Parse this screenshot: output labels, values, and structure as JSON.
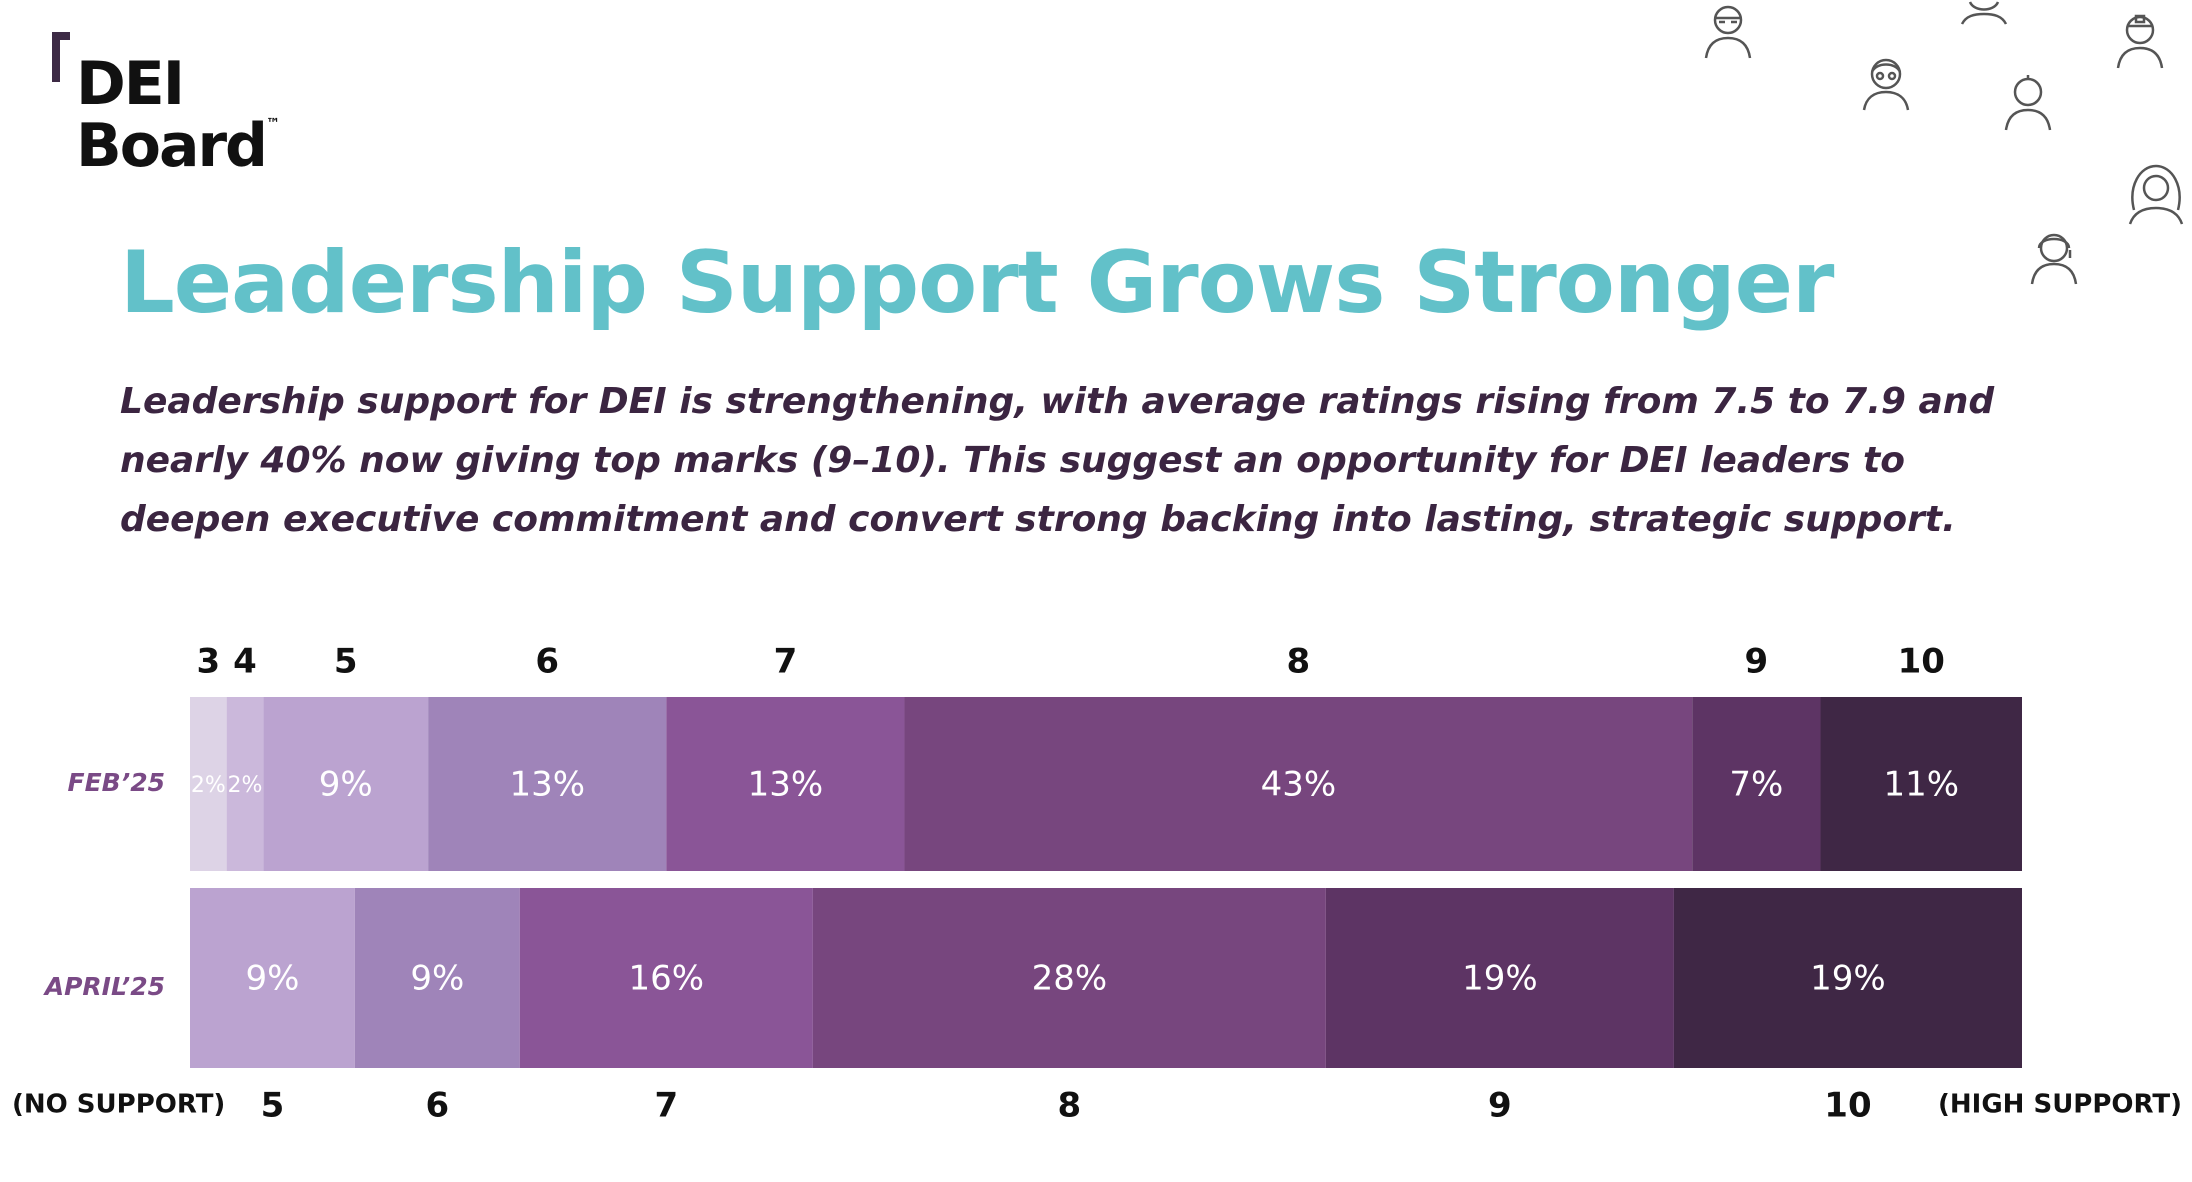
{
  "logo": {
    "line1": "DEI",
    "line2": "Board",
    "tm": "™"
  },
  "icons": [
    "person-icon",
    "person-icon",
    "person-icon",
    "person-icon",
    "person-icon",
    "person-icon",
    "person-icon"
  ],
  "header": {
    "title": "Leadership Support Grows Stronger",
    "subtitle": "Leadership support for DEI is strengthening, with average ratings rising from 7.5 to 7.9 and nearly 40% now giving top marks (9–10). This suggest an opportunity for DEI leaders to deepen executive commitment and convert strong backing into lasting, strategic support."
  },
  "chart_data": {
    "type": "bar",
    "orientation": "horizontal-stacked-100",
    "rows": [
      {
        "label": "FEB’25",
        "segments": [
          {
            "rating": "3",
            "value": 2,
            "label": "2%",
            "color": "#ddd3e6"
          },
          {
            "rating": "4",
            "value": 2,
            "label": "2%",
            "color": "#cbb8db"
          },
          {
            "rating": "5",
            "value": 9,
            "label": "9%",
            "color": "#bba3d0"
          },
          {
            "rating": "6",
            "value": 13,
            "label": "13%",
            "color": "#9f84b9"
          },
          {
            "rating": "7",
            "value": 13,
            "label": "13%",
            "color": "#8a5597"
          },
          {
            "rating": "8",
            "value": 43,
            "label": "43%",
            "color": "#77467e"
          },
          {
            "rating": "9",
            "value": 7,
            "label": "7%",
            "color": "#5d3464"
          },
          {
            "rating": "10",
            "value": 11,
            "label": "11%",
            "color": "#3f2745"
          }
        ]
      },
      {
        "label": "APRIL’25",
        "segments": [
          {
            "rating": "5",
            "value": 9,
            "label": "9%",
            "color": "#bba3d0"
          },
          {
            "rating": "6",
            "value": 9,
            "label": "9%",
            "color": "#9f84b9"
          },
          {
            "rating": "7",
            "value": 16,
            "label": "16%",
            "color": "#8a5597"
          },
          {
            "rating": "8",
            "value": 28,
            "label": "28%",
            "color": "#77467e"
          },
          {
            "rating": "9",
            "value": 19,
            "label": "19%",
            "color": "#5d3464"
          },
          {
            "rating": "10",
            "value": 19,
            "label": "19%",
            "color": "#3f2745"
          }
        ]
      }
    ],
    "scale_low_label": "(NO SUPPORT)",
    "scale_high_label": "(HIGH SUPPORT)",
    "row_label_color": "#7a4a86",
    "tick_label_color": "#111111"
  }
}
